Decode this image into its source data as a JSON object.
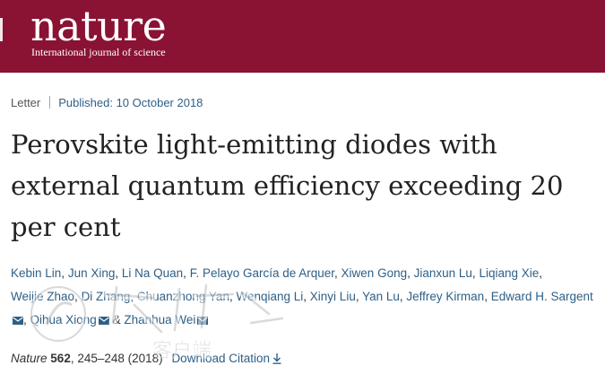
{
  "header": {
    "brand": "nature",
    "tagline": "International journal of science",
    "background_color": "#8a1233"
  },
  "meta": {
    "type": "Letter",
    "published": "Published: 10 October 2018"
  },
  "title": "Perovskite light-emitting diodes with external quantum efficiency exceeding 20 per cent",
  "authors": [
    {
      "name": "Kebin Lin",
      "mail": false
    },
    {
      "name": "Jun Xing",
      "mail": false
    },
    {
      "name": "Li Na Quan",
      "mail": false
    },
    {
      "name": "F. Pelayo García de Arquer",
      "mail": false
    },
    {
      "name": "Xiwen Gong",
      "mail": false
    },
    {
      "name": "Jianxun Lu",
      "mail": false
    },
    {
      "name": "Liqiang Xie",
      "mail": false
    },
    {
      "name": "Weijie Zhao",
      "mail": false
    },
    {
      "name": "Di Zhang",
      "mail": false
    },
    {
      "name": "Chuanzhong Yan",
      "mail": false
    },
    {
      "name": "Wenqiang Li",
      "mail": false
    },
    {
      "name": "Xinyi Liu",
      "mail": false
    },
    {
      "name": "Yan Lu",
      "mail": false
    },
    {
      "name": "Jeffrey Kirman",
      "mail": false
    },
    {
      "name": "Edward H. Sargent",
      "mail": true
    },
    {
      "name": "Qihua Xiong",
      "mail": true
    },
    {
      "name": "Zhanhua Wei",
      "mail": true
    }
  ],
  "citation": {
    "journal": "Nature",
    "volume": "562",
    "pages": ", 245–248 (2018)",
    "download_label": "Download Citation"
  },
  "watermark": {
    "text": "客户端",
    "icon": "watermark-logo-icon"
  },
  "colors": {
    "link": "#2e5f86",
    "title": "#222222"
  }
}
